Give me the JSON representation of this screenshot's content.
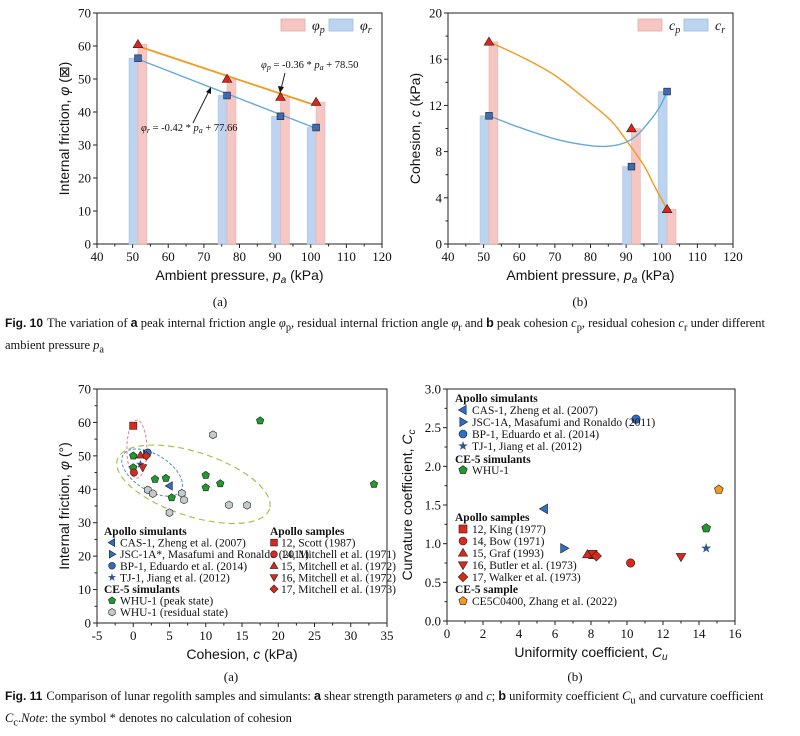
{
  "fig10": {
    "sublabel_a": "(a)",
    "sublabel_b": "(b)",
    "caption": {
      "figno": "Fig. 10",
      "t1": "The variation of ",
      "a": "a",
      "t2": " peak internal friction angle ",
      "v1": "φ",
      "s1": "p",
      "t3": ", residual internal friction angle ",
      "v2": "φ",
      "s2": "r",
      "t4": " and ",
      "b": "b",
      "t5": " peak cohesion ",
      "v3": "c",
      "s3": "p",
      "t6": ", residual cohesion ",
      "v4": "c",
      "s4": "r",
      "t7": " under different ambient pressure ",
      "v5": "p",
      "s5": "a"
    }
  },
  "fig11": {
    "sublabel_a": "(a)",
    "sublabel_b": "(b)",
    "caption": {
      "figno": "Fig. 11",
      "t1": "Comparison of lunar regolith samples and simulants: ",
      "a": "a",
      "t2": " shear strength parameters ",
      "v1": "φ",
      "t3": " and ",
      "v2": "c",
      "t4": "; ",
      "b": "b",
      "t5": " uniformity coefficient ",
      "v3": "C",
      "s3": "u",
      "t6": " and curvature coefficient ",
      "v4": "C",
      "s4": "c",
      "t7": ".",
      "note": "Note",
      "t8": ": the symbol * denotes no calculation of cohesion"
    }
  },
  "chart_data": [
    {
      "id": "fig10a",
      "type": "bar",
      "xlabel": {
        "pre": "Ambient pressure, ",
        "var": "p",
        "sub": "a",
        "post": " (kPa)"
      },
      "ylabel": {
        "pre": "Internal friction, ",
        "var": "φ",
        "post": " (⊠)"
      },
      "xlim": [
        40,
        120
      ],
      "ylim": [
        0,
        70
      ],
      "xticks": [
        "40",
        "50",
        "60",
        "70",
        "80",
        "90",
        "100",
        "110",
        "120"
      ],
      "yticks": [
        "0",
        "10",
        "20",
        "30",
        "40",
        "50",
        "60",
        "70"
      ],
      "x": [
        51.5,
        76.5,
        91.5,
        101.5
      ],
      "series": [
        {
          "name": {
            "sym": "φ",
            "sub": "p"
          },
          "values": [
            60.5,
            50.0,
            44.5,
            43.0
          ],
          "bar_color": "#f5c6c2",
          "marker": "triangle-up",
          "marker_color": "#e2231a"
        },
        {
          "name": {
            "sym": "φ",
            "sub": "r"
          },
          "values": [
            56.3,
            45.0,
            38.7,
            35.3
          ],
          "bar_color": "#bcd4ef",
          "marker": "square",
          "marker_color": "#3b6cb5"
        }
      ],
      "fits": [
        {
          "series": "φp",
          "slope": -0.36,
          "intercept": 78.5,
          "color": "#f39a1e",
          "label": {
            "v": "φ",
            "s": "p",
            "eq": " = -0.36 * ",
            "v2": "p",
            "s2": "a",
            "rest": " + 78.50"
          }
        },
        {
          "series": "φr",
          "slope": -0.42,
          "intercept": 77.66,
          "color": "#62a9dc",
          "label": {
            "v": "φ",
            "s": "r",
            "eq": " = -0.42 * ",
            "v2": "p",
            "s2": "a",
            "rest": " + 77.66"
          }
        }
      ],
      "legend": "top-right",
      "grid": false
    },
    {
      "id": "fig10b",
      "type": "bar",
      "xlabel": {
        "pre": "Ambient pressure, ",
        "var": "p",
        "sub": "a",
        "post": " (kPa)"
      },
      "ylabel": {
        "pre": "Cohesion, ",
        "var": "c",
        "post": " (kPa)"
      },
      "xlim": [
        40,
        120
      ],
      "ylim": [
        0,
        20
      ],
      "xticks": [
        "40",
        "50",
        "60",
        "70",
        "80",
        "90",
        "100",
        "110",
        "120"
      ],
      "yticks": [
        "0",
        "4",
        "8",
        "12",
        "16",
        "20"
      ],
      "x": [
        51.5,
        91.5,
        101.5
      ],
      "series": [
        {
          "name": {
            "sym": "c",
            "sub": "p"
          },
          "values": [
            17.5,
            10.0,
            3.0
          ],
          "bar_color": "#f5c6c2",
          "marker": "triangle-up",
          "marker_color": "#e2231a",
          "curve_color": "#f39a1e",
          "curve": [
            [
              51.5,
              17.5
            ],
            [
              60,
              16.3
            ],
            [
              70,
              14.6
            ],
            [
              80,
              12.2
            ],
            [
              86,
              10.6
            ],
            [
              90,
              9.0
            ],
            [
              95,
              6.8
            ],
            [
              98,
              5.0
            ],
            [
              101.5,
              3.0
            ]
          ]
        },
        {
          "name": {
            "sym": "c",
            "sub": "r"
          },
          "values": [
            11.1,
            6.7,
            13.2
          ],
          "bar_color": "#bcd4ef",
          "marker": "square",
          "marker_color": "#3b6cb5",
          "curve_color": "#62a9dc",
          "curve": [
            [
              51.5,
              11.1
            ],
            [
              60,
              10.1
            ],
            [
              70,
              9.1
            ],
            [
              78,
              8.6
            ],
            [
              84,
              8.45
            ],
            [
              89,
              8.7
            ],
            [
              93,
              9.4
            ],
            [
              97,
              10.8
            ],
            [
              99.5,
              11.9
            ],
            [
              101.5,
              13.2
            ]
          ]
        }
      ],
      "legend": "top-right",
      "grid": false
    },
    {
      "id": "fig11a",
      "type": "scatter",
      "xlabel": {
        "pre": "Cohesion, ",
        "var": "c",
        "post": " (kPa)"
      },
      "ylabel": {
        "pre": "Internal friction, ",
        "var": "φ",
        "post": " (°)"
      },
      "xlim": [
        -5,
        35
      ],
      "ylim": [
        0,
        70
      ],
      "xticks": [
        "-5",
        "0",
        "5",
        "10",
        "15",
        "20",
        "25",
        "30",
        "35"
      ],
      "yticks": [
        "0",
        "10",
        "20",
        "30",
        "40",
        "50",
        "60",
        "70"
      ],
      "legend_groups": [
        {
          "title": "Apollo simulants",
          "column": "left",
          "series": [
            {
              "name": "CAS-1, Zheng et al. (2007)",
              "marker": "triangle-left",
              "color": "#2d6fc4",
              "points": [
                [
                  5.0,
                  41.0
                ]
              ]
            },
            {
              "name": "JSC-1A*, Masafumi and Ronaldo (2011)",
              "marker": "triangle-right",
              "color": "#2d6fc4",
              "points": [
                [
                  1.8,
                  50.5
                ]
              ]
            },
            {
              "name": "BP-1, Eduardo et al. (2014)",
              "marker": "circle",
              "color": "#2d6fc4",
              "points": [
                [
                  2.0,
                  51.0
                ]
              ]
            },
            {
              "name": "TJ-1, Jiang et al. (2012)",
              "marker": "star",
              "color": "#34558f",
              "points": [
                [
                  1.0,
                  47.5
                ]
              ]
            }
          ]
        },
        {
          "title": "CE-5 simulants",
          "column": "left",
          "series": [
            {
              "name": "WHU-1 (peak state)",
              "marker": "pentagon",
              "color": "#1f9a2c",
              "points": [
                [
                  0,
                  50
                ],
                [
                  0,
                  46.5
                ],
                [
                  3,
                  43
                ],
                [
                  4.5,
                  43.3
                ],
                [
                  5.3,
                  37.5
                ],
                [
                  10,
                  44.2
                ],
                [
                  10,
                  40.5
                ],
                [
                  12,
                  41.7
                ],
                [
                  17.5,
                  60.5
                ],
                [
                  33.2,
                  41.5
                ]
              ]
            },
            {
              "name": "WHU-1 (residual state)",
              "marker": "hexagon",
              "color": "#c3cccb",
              "points": [
                [
                  11,
                  56.3
                ],
                [
                  2,
                  39.8
                ],
                [
                  2.7,
                  38.7
                ],
                [
                  6.7,
                  38.8
                ],
                [
                  7,
                  36.8
                ],
                [
                  5,
                  33
                ],
                [
                  13.2,
                  35.3
                ],
                [
                  15.7,
                  35.2
                ]
              ]
            }
          ]
        },
        {
          "title": "Apollo samples",
          "column": "right",
          "series": [
            {
              "name": "12, Scott (1987)",
              "marker": "square",
              "color": "#d9281c",
              "points": [
                [
                  0,
                  59
                ]
              ]
            },
            {
              "name": "14, Mitchell et al. (1971)",
              "marker": "circle",
              "color": "#d9281c",
              "points": [
                [
                  0.1,
                  45
                ]
              ]
            },
            {
              "name": "15, Mitchell et al. (1972)",
              "marker": "triangle-up",
              "color": "#d9281c",
              "points": [
                [
                  1.0,
                  50.2
                ]
              ]
            },
            {
              "name": "16, Mitchell et al. (1972)",
              "marker": "triangle-down",
              "color": "#d9281c",
              "points": [
                [
                  1.3,
                  46.5
                ]
              ]
            },
            {
              "name": "17, Mitchell et al. (1973)",
              "marker": "diamond",
              "color": "#d9281c",
              "points": [
                [
                  1.8,
                  50
                ]
              ]
            }
          ]
        }
      ],
      "ellipse_colors": [
        "#f07c8c",
        "#4a90d9",
        "#a6c24a"
      ],
      "grid": false
    },
    {
      "id": "fig11b",
      "type": "scatter",
      "xlabel": {
        "pre": "Uniformity coefficient, ",
        "var": "C",
        "sub": "u"
      },
      "ylabel": {
        "pre": "Curvature coefficient, ",
        "var": "C",
        "sub": "c"
      },
      "xlim": [
        0,
        16
      ],
      "ylim": [
        0,
        3.0
      ],
      "xticks": [
        "0",
        "2",
        "4",
        "6",
        "8",
        "10",
        "12",
        "14",
        "16"
      ],
      "yticks": [
        "0.0",
        "0.5",
        "1.0",
        "1.5",
        "2.0",
        "2.5",
        "3.0"
      ],
      "legend_groups": [
        {
          "title": "Apollo simulants",
          "series": [
            {
              "name": "CAS-1, Zheng et al. (2007)",
              "marker": "triangle-left",
              "color": "#2d6fc4",
              "points": [
                [
                  5.4,
                  1.45
                ]
              ]
            },
            {
              "name": "JSC-1A, Masafumi and Ronaldo (2011)",
              "marker": "triangle-right",
              "color": "#2d6fc4",
              "points": [
                [
                  6.5,
                  0.94
                ]
              ]
            },
            {
              "name": "BP-1, Eduardo et al. (2014)",
              "marker": "circle",
              "color": "#2d6fc4",
              "points": [
                [
                  10.5,
                  2.61
                ]
              ]
            },
            {
              "name": "TJ-1, Jiang et al. (2012)",
              "marker": "star",
              "color": "#34558f",
              "points": [
                [
                  14.4,
                  0.94
                ]
              ]
            }
          ]
        },
        {
          "title": "CE-5 simulants",
          "series": [
            {
              "name": "WHU-1",
              "marker": "pentagon",
              "color": "#1f9a2c",
              "points": [
                [
                  14.4,
                  1.2
                ]
              ]
            }
          ]
        },
        {
          "title": "Apollo samples",
          "series": [
            {
              "name": "12, King (1977)",
              "marker": "square",
              "color": "#d9281c",
              "points": [
                [
                  8.1,
                  0.86
                ]
              ]
            },
            {
              "name": "14, Bow (1971)",
              "marker": "circle",
              "color": "#d9281c",
              "points": [
                [
                  10.2,
                  0.75
                ]
              ]
            },
            {
              "name": "15, Graf (1993)",
              "marker": "triangle-up",
              "color": "#d9281c",
              "points": [
                [
                  7.8,
                  0.86
                ]
              ]
            },
            {
              "name": "16, Butler et al. (1973)",
              "marker": "triangle-down",
              "color": "#d9281c",
              "points": [
                [
                  13.0,
                  0.83
                ]
              ]
            },
            {
              "name": "17, Walker et al. (1973)",
              "marker": "diamond",
              "color": "#d9281c",
              "points": [
                [
                  8.3,
                  0.84
                ]
              ]
            }
          ]
        },
        {
          "title": "CE-5 sample",
          "series": [
            {
              "name": "CE5C0400, Zhang et al. (2022)",
              "marker": "pentagon",
              "color": "#f39a1e",
              "points": [
                [
                  15.1,
                  1.7
                ]
              ]
            }
          ]
        }
      ],
      "legend": "top-left",
      "grid": false
    }
  ]
}
